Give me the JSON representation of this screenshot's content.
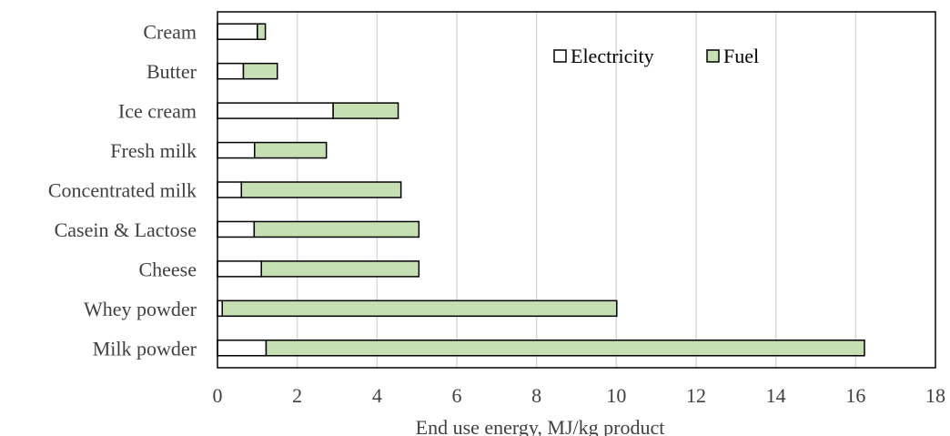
{
  "chart_data": {
    "type": "bar",
    "orientation": "horizontal",
    "stacked": true,
    "categories": [
      "Cream",
      "Butter",
      "Ice cream",
      "Fresh milk",
      "Concentrated milk",
      "Casein & Lactose",
      "Cheese",
      "Whey powder",
      "Milk powder"
    ],
    "series": [
      {
        "name": "Electricity",
        "color": "#ffffff",
        "values": [
          1.0,
          0.65,
          2.9,
          0.93,
          0.6,
          0.92,
          1.1,
          0.12,
          1.22
        ]
      },
      {
        "name": "Fuel",
        "color": "#c6e0b4",
        "values": [
          0.2,
          0.85,
          1.63,
          1.8,
          4.0,
          4.13,
          3.95,
          9.89,
          15.0
        ]
      }
    ],
    "xlabel": "End use energy, MJ/kg product",
    "ylabel": "",
    "xlim": [
      0,
      18
    ],
    "xticks": [
      0,
      2,
      4,
      6,
      8,
      10,
      12,
      14,
      16,
      18
    ],
    "grid": "vertical",
    "legend_position": "top-right"
  }
}
